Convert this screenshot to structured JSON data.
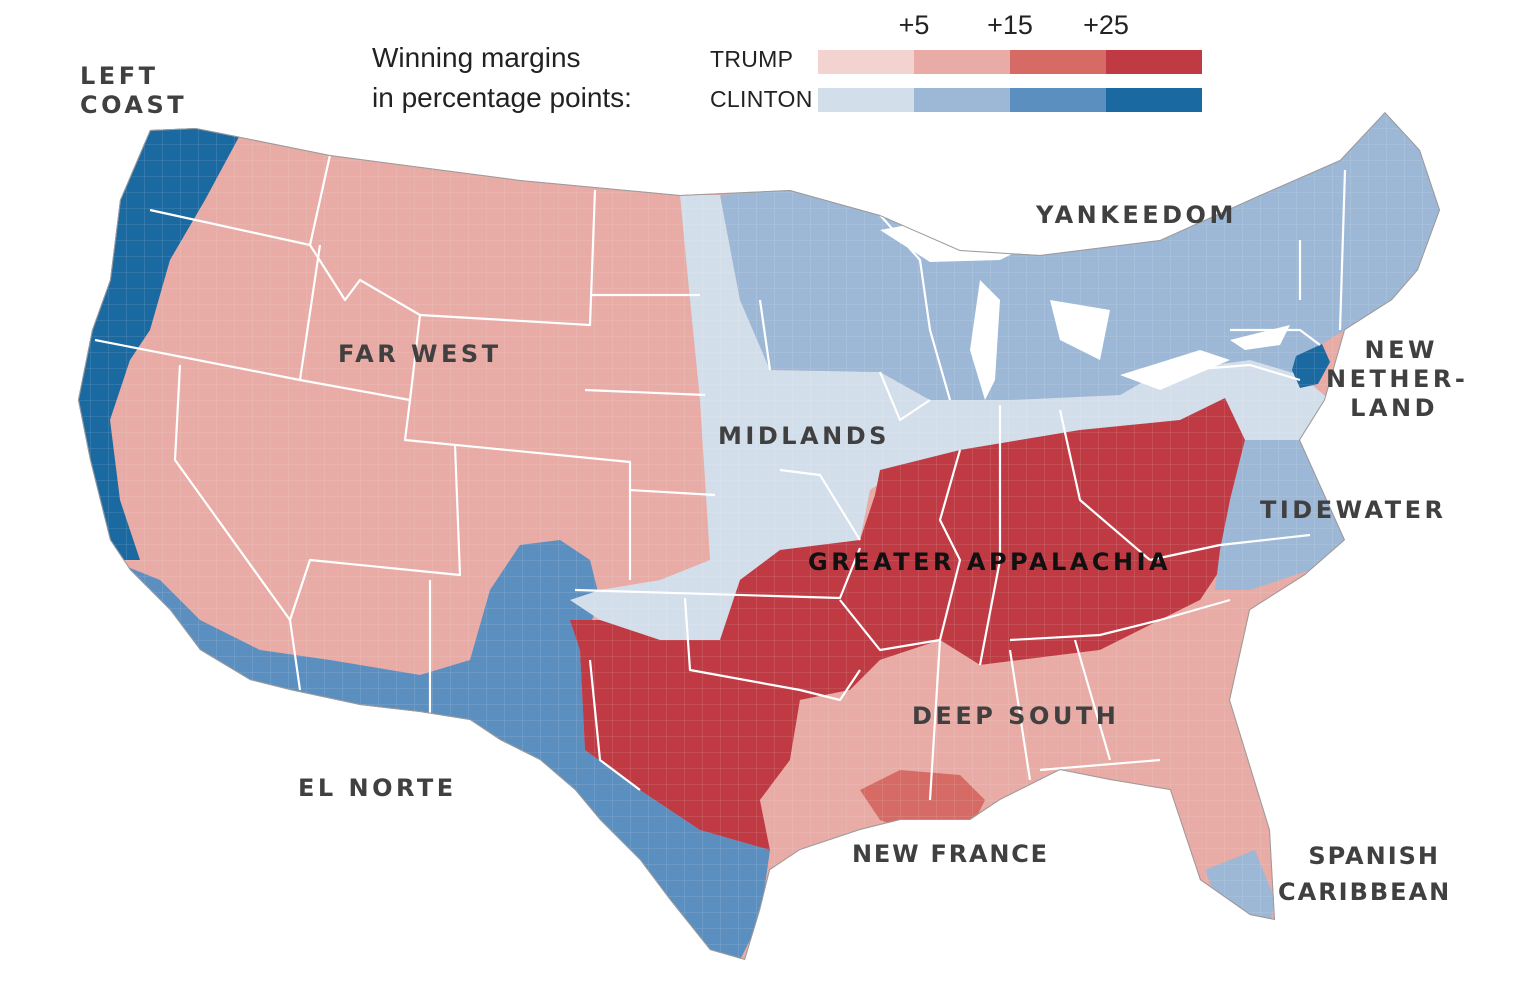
{
  "legend": {
    "title_line1": "Winning margins",
    "title_line2": "in percentage points:",
    "ticks": [
      "+5",
      "+15",
      "+25"
    ],
    "trump_label": "TRUMP",
    "clinton_label": "CLINTON",
    "trump_colors": [
      "#f3d3cf",
      "#e8aba5",
      "#d66b66",
      "#bf3a43"
    ],
    "clinton_colors": [
      "#d3deeb",
      "#9cb8d6",
      "#5b8fbf",
      "#1b69a1"
    ]
  },
  "regions": {
    "left_coast_line1": "LEFT",
    "left_coast_line2": "COAST",
    "far_west": "FAR WEST",
    "yankeedom": "YANKEEDOM",
    "new_netherland_line1": "NEW",
    "new_netherland_line2": "NETHER-",
    "new_netherland_line3": "LAND",
    "midlands": "MIDLANDS",
    "tidewater": "TIDEWATER",
    "greater_appalachia": "GREATER APPALACHIA",
    "deep_south": "DEEP SOUTH",
    "el_norte": "EL NORTE",
    "new_france": "NEW FRANCE",
    "spanish_caribbean_line1": "SPANISH",
    "spanish_caribbean_line2": "CARIBBEAN"
  },
  "region_colors": {
    "left_coast": "#1b69a1",
    "far_west": "#e8aba5",
    "yankeedom": "#9cb8d6",
    "midlands": "#d3deeb",
    "greater_appalachia": "#bf3a43",
    "deep_south": "#e8aba5",
    "el_norte": "#5b8fbf",
    "new_france": "#d66b66",
    "tidewater": "#9cb8d6",
    "new_netherland": "#1b69a1",
    "spanish_caribbean": "#9cb8d6"
  }
}
